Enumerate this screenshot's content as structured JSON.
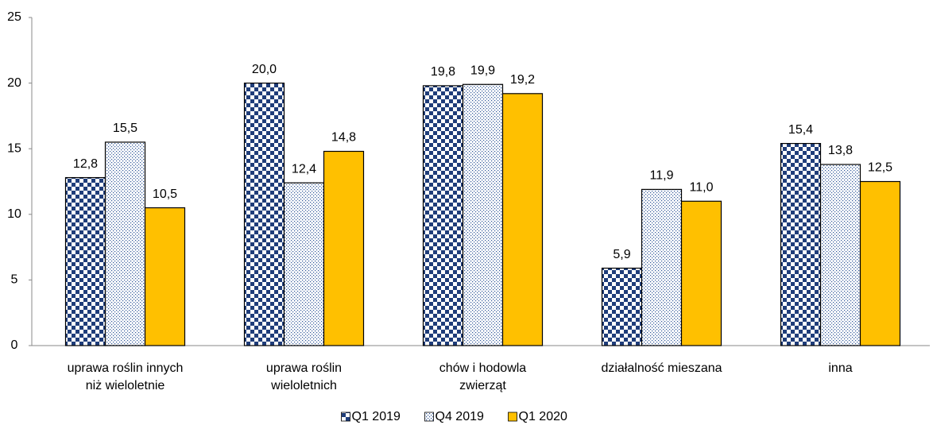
{
  "chart_data": {
    "type": "bar",
    "categories": [
      "uprawa roślin innych\nniż wieloletnie",
      "uprawa roślin\nwieloletnich",
      "chów i hodowla\nzwierząt",
      "działalność mieszana",
      "inna"
    ],
    "series": [
      {
        "name": "Q1 2019",
        "color": "#1f3d7a",
        "pattern": "checker",
        "values": [
          12.8,
          20.0,
          19.8,
          5.9,
          15.4
        ],
        "value_labels": [
          "12,8",
          "20,0",
          "19,8",
          "5,9",
          "15,4"
        ]
      },
      {
        "name": "Q4 2019",
        "color": "#2e5597",
        "pattern": "dots",
        "values": [
          15.5,
          12.4,
          19.9,
          11.9,
          13.8
        ],
        "value_labels": [
          "15,5",
          "12,4",
          "19,9",
          "11,9",
          "13,8"
        ]
      },
      {
        "name": "Q1 2020",
        "color": "#ffc000",
        "pattern": "solid",
        "values": [
          10.5,
          14.8,
          19.2,
          11.0,
          12.5
        ],
        "value_labels": [
          "10,5",
          "14,8",
          "19,2",
          "11,0",
          "12,5"
        ]
      }
    ],
    "ylim": [
      0,
      25
    ],
    "yticks": [
      0,
      5,
      10,
      15,
      20,
      25
    ],
    "grid": false,
    "legend": "bottom"
  }
}
